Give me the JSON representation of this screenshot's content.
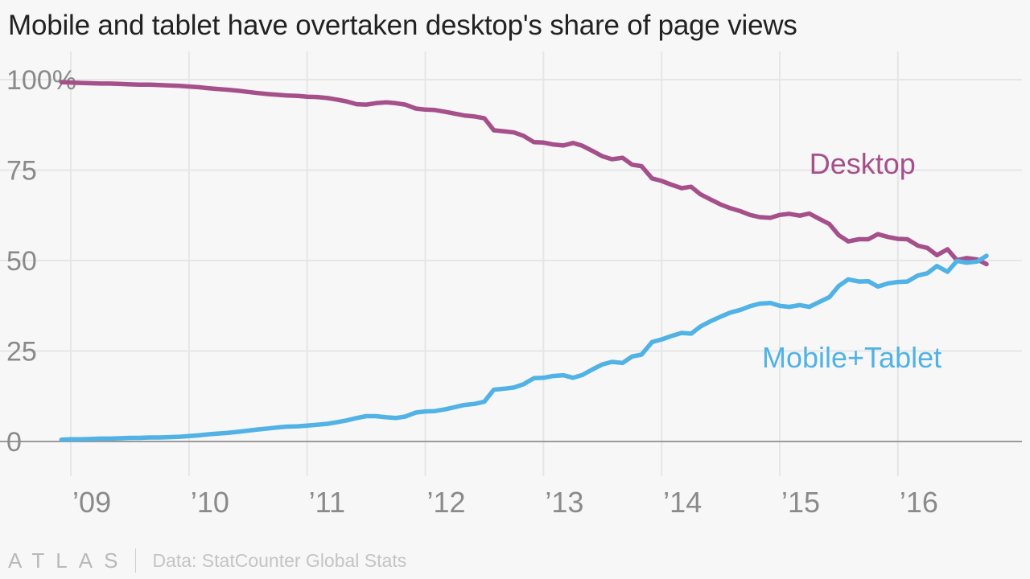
{
  "chart_data": {
    "type": "line",
    "title": "Mobile and tablet have overtaken desktop's share of page views",
    "xlabel": "",
    "ylabel": "",
    "y_ticks": [
      0,
      25,
      50,
      75,
      100
    ],
    "y_tick_labels": [
      "0",
      "25",
      "50",
      "75",
      "100%"
    ],
    "ylim": [
      0,
      100
    ],
    "x_ticks": [
      2009,
      2010,
      2011,
      2012,
      2013,
      2014,
      2015,
      2016
    ],
    "x_tick_labels": [
      "’09",
      "’10",
      "’11",
      "’12",
      "’13",
      "’14",
      "’15",
      "’16"
    ],
    "xlim": [
      2008.7,
      2017.05
    ],
    "grid": true,
    "legend": "inline labels",
    "series": [
      {
        "name": "Desktop",
        "color": "#a5508a",
        "points": [
          [
            2008.92,
            99.3
          ],
          [
            2009.0,
            99.2
          ],
          [
            2009.08,
            99.1
          ],
          [
            2009.17,
            99.0
          ],
          [
            2009.25,
            98.9
          ],
          [
            2009.33,
            98.9
          ],
          [
            2009.42,
            98.8
          ],
          [
            2009.5,
            98.7
          ],
          [
            2009.58,
            98.6
          ],
          [
            2009.67,
            98.6
          ],
          [
            2009.75,
            98.5
          ],
          [
            2009.83,
            98.4
          ],
          [
            2009.92,
            98.3
          ],
          [
            2010.0,
            98.1
          ],
          [
            2010.08,
            97.9
          ],
          [
            2010.17,
            97.6
          ],
          [
            2010.25,
            97.4
          ],
          [
            2010.33,
            97.2
          ],
          [
            2010.42,
            96.9
          ],
          [
            2010.5,
            96.6
          ],
          [
            2010.58,
            96.3
          ],
          [
            2010.67,
            96.0
          ],
          [
            2010.75,
            95.8
          ],
          [
            2010.83,
            95.6
          ],
          [
            2010.92,
            95.5
          ],
          [
            2011.0,
            95.3
          ],
          [
            2011.08,
            95.2
          ],
          [
            2011.17,
            94.9
          ],
          [
            2011.25,
            94.5
          ],
          [
            2011.33,
            94.0
          ],
          [
            2011.42,
            93.2
          ],
          [
            2011.5,
            93.1
          ],
          [
            2011.58,
            93.5
          ],
          [
            2011.67,
            93.7
          ],
          [
            2011.75,
            93.5
          ],
          [
            2011.83,
            93.1
          ],
          [
            2011.92,
            92.0
          ],
          [
            2012.0,
            91.7
          ],
          [
            2012.08,
            91.6
          ],
          [
            2012.17,
            91.1
          ],
          [
            2012.25,
            90.6
          ],
          [
            2012.33,
            90.1
          ],
          [
            2012.42,
            89.8
          ],
          [
            2012.5,
            89.3
          ],
          [
            2012.58,
            86.0
          ],
          [
            2012.67,
            85.7
          ],
          [
            2012.75,
            85.4
          ],
          [
            2012.83,
            84.5
          ],
          [
            2012.92,
            82.7
          ],
          [
            2013.0,
            82.6
          ],
          [
            2013.08,
            82.1
          ],
          [
            2013.17,
            81.8
          ],
          [
            2013.25,
            82.5
          ],
          [
            2013.33,
            81.7
          ],
          [
            2013.42,
            80.2
          ],
          [
            2013.5,
            78.8
          ],
          [
            2013.58,
            78.0
          ],
          [
            2013.67,
            78.4
          ],
          [
            2013.75,
            76.5
          ],
          [
            2013.83,
            76.1
          ],
          [
            2013.92,
            72.7
          ],
          [
            2014.0,
            72.0
          ],
          [
            2014.08,
            71.0
          ],
          [
            2014.17,
            70.0
          ],
          [
            2014.25,
            70.4
          ],
          [
            2014.33,
            68.3
          ],
          [
            2014.42,
            66.8
          ],
          [
            2014.5,
            65.5
          ],
          [
            2014.58,
            64.5
          ],
          [
            2014.67,
            63.6
          ],
          [
            2014.75,
            62.6
          ],
          [
            2014.83,
            62.0
          ],
          [
            2014.92,
            61.8
          ],
          [
            2015.0,
            62.6
          ],
          [
            2015.08,
            62.9
          ],
          [
            2015.17,
            62.4
          ],
          [
            2015.25,
            63.0
          ],
          [
            2015.33,
            61.6
          ],
          [
            2015.42,
            60.1
          ],
          [
            2015.5,
            57.0
          ],
          [
            2015.58,
            55.3
          ],
          [
            2015.67,
            55.9
          ],
          [
            2015.75,
            55.9
          ],
          [
            2015.83,
            57.3
          ],
          [
            2015.92,
            56.5
          ],
          [
            2016.0,
            56.0
          ],
          [
            2016.08,
            55.9
          ],
          [
            2016.17,
            54.1
          ],
          [
            2016.25,
            53.5
          ],
          [
            2016.33,
            51.5
          ],
          [
            2016.42,
            53.1
          ],
          [
            2016.5,
            50.1
          ],
          [
            2016.58,
            50.7
          ],
          [
            2016.67,
            50.3
          ],
          [
            2016.75,
            49.0
          ]
        ]
      },
      {
        "name": "Mobile+Tablet",
        "color": "#51b2e5",
        "points": [
          [
            2008.92,
            0.5
          ],
          [
            2009.0,
            0.6
          ],
          [
            2009.08,
            0.6
          ],
          [
            2009.17,
            0.7
          ],
          [
            2009.25,
            0.8
          ],
          [
            2009.33,
            0.8
          ],
          [
            2009.42,
            0.9
          ],
          [
            2009.5,
            1.0
          ],
          [
            2009.58,
            1.0
          ],
          [
            2009.67,
            1.1
          ],
          [
            2009.75,
            1.1
          ],
          [
            2009.83,
            1.2
          ],
          [
            2009.92,
            1.3
          ],
          [
            2010.0,
            1.5
          ],
          [
            2010.08,
            1.7
          ],
          [
            2010.17,
            2.0
          ],
          [
            2010.25,
            2.2
          ],
          [
            2010.33,
            2.4
          ],
          [
            2010.42,
            2.7
          ],
          [
            2010.5,
            3.0
          ],
          [
            2010.58,
            3.3
          ],
          [
            2010.67,
            3.6
          ],
          [
            2010.75,
            3.9
          ],
          [
            2010.83,
            4.1
          ],
          [
            2010.92,
            4.2
          ],
          [
            2011.0,
            4.4
          ],
          [
            2011.08,
            4.6
          ],
          [
            2011.17,
            4.9
          ],
          [
            2011.25,
            5.3
          ],
          [
            2011.33,
            5.8
          ],
          [
            2011.42,
            6.5
          ],
          [
            2011.5,
            7.0
          ],
          [
            2011.58,
            7.0
          ],
          [
            2011.67,
            6.7
          ],
          [
            2011.75,
            6.5
          ],
          [
            2011.83,
            6.9
          ],
          [
            2011.92,
            8.0
          ],
          [
            2012.0,
            8.3
          ],
          [
            2012.08,
            8.4
          ],
          [
            2012.17,
            8.9
          ],
          [
            2012.25,
            9.5
          ],
          [
            2012.33,
            10.1
          ],
          [
            2012.42,
            10.4
          ],
          [
            2012.5,
            11.0
          ],
          [
            2012.58,
            14.3
          ],
          [
            2012.67,
            14.6
          ],
          [
            2012.75,
            14.9
          ],
          [
            2012.83,
            15.8
          ],
          [
            2012.92,
            17.5
          ],
          [
            2013.0,
            17.6
          ],
          [
            2013.08,
            18.1
          ],
          [
            2013.17,
            18.3
          ],
          [
            2013.25,
            17.6
          ],
          [
            2013.33,
            18.4
          ],
          [
            2013.42,
            20.0
          ],
          [
            2013.5,
            21.3
          ],
          [
            2013.58,
            22.0
          ],
          [
            2013.67,
            21.7
          ],
          [
            2013.75,
            23.5
          ],
          [
            2013.83,
            24.0
          ],
          [
            2013.92,
            27.5
          ],
          [
            2014.0,
            28.2
          ],
          [
            2014.08,
            29.1
          ],
          [
            2014.17,
            30.0
          ],
          [
            2014.25,
            29.8
          ],
          [
            2014.33,
            31.8
          ],
          [
            2014.42,
            33.3
          ],
          [
            2014.5,
            34.5
          ],
          [
            2014.58,
            35.6
          ],
          [
            2014.67,
            36.4
          ],
          [
            2014.75,
            37.4
          ],
          [
            2014.83,
            38.1
          ],
          [
            2014.92,
            38.3
          ],
          [
            2015.0,
            37.5
          ],
          [
            2015.08,
            37.2
          ],
          [
            2015.17,
            37.7
          ],
          [
            2015.25,
            37.2
          ],
          [
            2015.33,
            38.5
          ],
          [
            2015.42,
            39.9
          ],
          [
            2015.5,
            43.0
          ],
          [
            2015.58,
            44.8
          ],
          [
            2015.67,
            44.2
          ],
          [
            2015.75,
            44.3
          ],
          [
            2015.83,
            42.8
          ],
          [
            2015.92,
            43.7
          ],
          [
            2016.0,
            44.1
          ],
          [
            2016.08,
            44.2
          ],
          [
            2016.17,
            45.9
          ],
          [
            2016.25,
            46.5
          ],
          [
            2016.33,
            48.5
          ],
          [
            2016.42,
            46.9
          ],
          [
            2016.5,
            49.9
          ],
          [
            2016.58,
            49.4
          ],
          [
            2016.67,
            49.7
          ],
          [
            2016.75,
            51.3
          ]
        ]
      }
    ],
    "annotations": [
      {
        "series": "Desktop",
        "text": "Desktop",
        "x": 2015.25,
        "y": 74,
        "color": "#a5508a"
      },
      {
        "series": "Mobile+Tablet",
        "text": "Mobile+Tablet",
        "x": 2014.85,
        "y": 20.5,
        "color": "#51b2e5"
      }
    ]
  },
  "footer": {
    "logo_text": "ATLAS",
    "source": "Data: StatCounter Global Stats"
  }
}
